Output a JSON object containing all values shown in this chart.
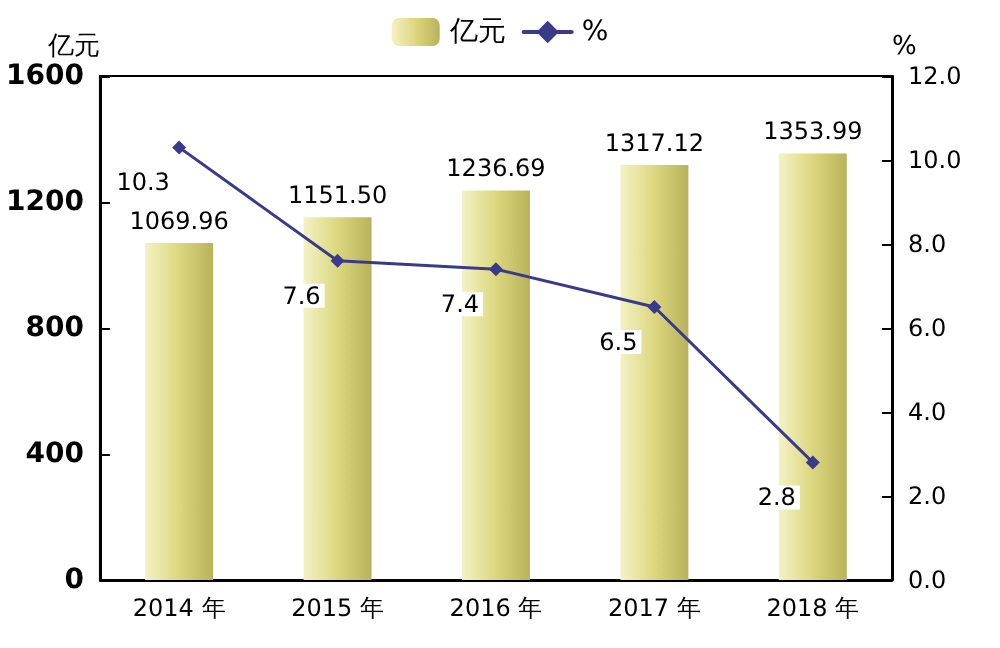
{
  "chart_data": {
    "type": "bar",
    "categories": [
      "2014 年",
      "2015 年",
      "2016 年",
      "2017 年",
      "2018 年"
    ],
    "ylabel": "亿元",
    "y2label": "%",
    "series": [
      {
        "name": "亿元",
        "color": "#dcd77e",
        "values": [
          1069.96,
          1151.5,
          1236.69,
          1317.12,
          1353.99
        ],
        "value_labels": [
          "1069.96",
          "1151.50",
          "1236.69",
          "1317.12",
          "1353.99"
        ]
      },
      {
        "name": "%",
        "type": "line",
        "axis": "y2",
        "color": "#3a3a8c",
        "values": [
          10.3,
          7.6,
          7.4,
          6.5,
          2.8
        ],
        "value_labels": [
          "10.3",
          "7.6",
          "7.4",
          "6.5",
          "2.8"
        ]
      }
    ],
    "ylim": [
      0,
      1600
    ],
    "yticks": [
      0,
      400,
      800,
      1200,
      1600
    ],
    "y2lim": [
      0,
      12
    ],
    "y2ticks": [
      {
        "value": 0,
        "label": "0.0"
      },
      {
        "value": 2,
        "label": "2.0"
      },
      {
        "value": 4,
        "label": "4.0"
      },
      {
        "value": 6,
        "label": "6.0"
      },
      {
        "value": 8,
        "label": "8.0"
      },
      {
        "value": 10,
        "label": "10.0"
      },
      {
        "value": 12,
        "label": "12.0"
      }
    ],
    "legend": "top",
    "marker": "diamond",
    "line_style": "solid",
    "grid": false
  }
}
